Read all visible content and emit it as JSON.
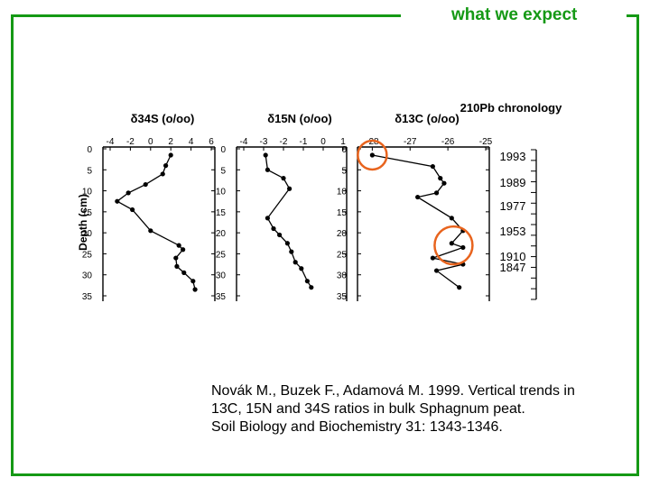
{
  "slide": {
    "title": "what we expect",
    "frame_color": "#159915",
    "highlight_color": "#E8641E",
    "citation": [
      "Novák M., Buzek F., Adamová M. 1999. Vertical trends in",
      "13C, 15N and 34S ratios in bulk Sphagnum peat.",
      "Soil Biology and Biochemistry 31: 1343-1346."
    ]
  },
  "chart_data": [
    {
      "type": "line",
      "orientation": "depth-profile",
      "title": "δ34S (o/oo)",
      "ylabel": "Depth (cm)",
      "xlim": [
        -4,
        6
      ],
      "x_ticks": [
        "-4",
        "-2",
        "0",
        "2",
        "4",
        "6"
      ],
      "ylim": [
        0,
        35
      ],
      "y_ticks": [
        "0",
        "5",
        "10",
        "15",
        "20",
        "25",
        "30",
        "35"
      ],
      "series": [
        {
          "x": [
            2.0,
            1.5,
            1.2,
            -0.5,
            -2.2,
            -3.3,
            -1.8,
            0.0,
            2.8,
            3.2,
            2.5,
            2.6,
            3.3,
            4.2,
            4.4
          ],
          "y": [
            1.5,
            4.0,
            6.0,
            8.5,
            10.5,
            12.5,
            14.5,
            19.5,
            23.0,
            24.0,
            26.0,
            28.0,
            29.5,
            31.5,
            33.5
          ]
        }
      ]
    },
    {
      "type": "line",
      "orientation": "depth-profile",
      "title": "δ15N (o/oo)",
      "xlim": [
        -4,
        1
      ],
      "x_ticks": [
        "-4",
        "-3",
        "-2",
        "-1",
        "0",
        "1"
      ],
      "ylim": [
        0,
        35
      ],
      "y_ticks": [
        "0",
        "5",
        "10",
        "15",
        "20",
        "25",
        "30",
        "35"
      ],
      "series": [
        {
          "x": [
            -2.9,
            -2.8,
            -2.0,
            -1.7,
            -2.8,
            -2.5,
            -2.2,
            -1.8,
            -1.6,
            -1.4,
            -1.1,
            -0.8,
            -0.6
          ],
          "y": [
            1.5,
            5.0,
            7.0,
            9.5,
            16.5,
            19.0,
            20.5,
            22.5,
            24.5,
            27.0,
            28.5,
            31.5,
            33.0
          ]
        }
      ]
    },
    {
      "type": "line",
      "orientation": "depth-profile",
      "title": "δ13C (o/oo)",
      "xlim": [
        -28.2,
        -25.0
      ],
      "x_ticks": [
        "-28",
        "-27",
        "-26",
        "-25"
      ],
      "ylim": [
        0,
        35
      ],
      "y_ticks": [
        "0",
        "5",
        "10",
        "15",
        "20",
        "25",
        "30",
        "35"
      ],
      "series": [
        {
          "x": [
            -28.0,
            -26.4,
            -26.2,
            -26.1,
            -26.3,
            -26.8,
            -25.9,
            -25.6,
            -25.9,
            -25.6,
            -26.4,
            -25.6,
            -26.3,
            -25.7
          ],
          "y": [
            1.5,
            4.2,
            7.0,
            8.2,
            10.5,
            11.5,
            16.5,
            19.5,
            22.5,
            23.5,
            26.0,
            27.5,
            29.0,
            33.0
          ]
        }
      ]
    },
    {
      "type": "table",
      "title": "210Pb chronology",
      "rows": [
        "1993",
        "1989",
        "1977",
        "1953",
        "1910",
        "1847"
      ]
    }
  ]
}
